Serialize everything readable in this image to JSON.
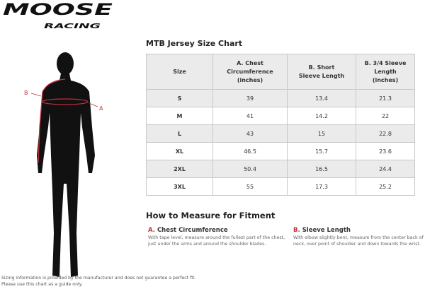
{
  "brand": {
    "logo_text": "MOOSE RACING"
  },
  "chart": {
    "title": "MTB Jersey Size Chart",
    "headers": [
      "Size",
      "A. Chest Circumference (inches)",
      "B. Short Sleeve Length",
      "B. 3/4 Sleeve Length (inches)"
    ],
    "rows": [
      [
        "S",
        "39",
        "13.4",
        "21.3"
      ],
      [
        "M",
        "41",
        "14.2",
        "22"
      ],
      [
        "L",
        "43",
        "15",
        "22.8"
      ],
      [
        "XL",
        "46.5",
        "15.7",
        "23.6"
      ],
      [
        "2XL",
        "50.4",
        "16.5",
        "24.4"
      ],
      [
        "3XL",
        "55",
        "17.3",
        "25.2"
      ]
    ]
  },
  "figure": {
    "label_a": "A",
    "label_b": "B",
    "accent": "#c0303a"
  },
  "measure": {
    "title": "How to Measure for Fitment",
    "a": {
      "letter": "A.",
      "title": "Chest Circumference",
      "text": "With tape level, measure around the fullest part of the chest, just under the arms and around the shoulder blades."
    },
    "b": {
      "letter": "B.",
      "title": "Sleeve Length",
      "text": "With elbow slightly bent, measure from the center back of neck, over point of shoulder and down towards the wrist."
    }
  },
  "footer": {
    "line1": "Sizing information is provided by the manufacturer and does not guarantee a perfect fit.",
    "line2": "Please use this chart as a guide only."
  }
}
